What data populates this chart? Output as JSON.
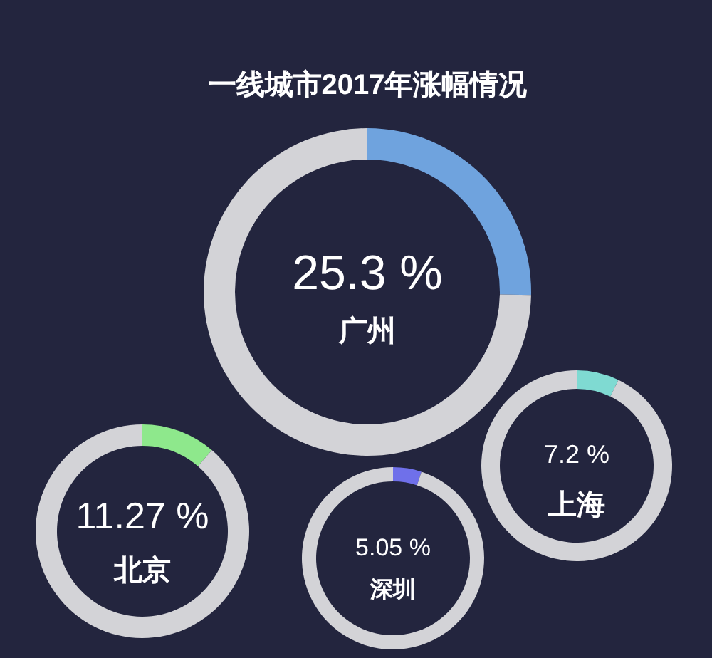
{
  "chart_data": [
    {
      "type": "donut",
      "title": "一线城市2017年涨幅情况",
      "categories": [
        "广州",
        null
      ],
      "values": [
        25.3,
        74.7
      ],
      "colors": [
        "#6fa3de",
        "#d3d3d7"
      ],
      "value_labels": [
        "25.3 %",
        null
      ]
    },
    {
      "type": "donut",
      "categories": [
        "北京",
        null
      ],
      "values": [
        11.27,
        88.73
      ],
      "colors": [
        "#8ee88c",
        "#d3d3d7"
      ],
      "value_labels": [
        "11.27 %",
        null
      ]
    },
    {
      "type": "donut",
      "categories": [
        "深圳",
        null
      ],
      "values": [
        5.05,
        94.95
      ],
      "colors": [
        "#6f70ea",
        "#d3d3d7"
      ],
      "value_labels": [
        "5.05 %",
        null
      ]
    },
    {
      "type": "donut",
      "categories": [
        "上海",
        null
      ],
      "values": [
        7.2,
        92.8
      ],
      "colors": [
        "#7fdad2",
        "#d3d3d7"
      ],
      "value_labels": [
        "7.2 %",
        null
      ]
    }
  ]
}
